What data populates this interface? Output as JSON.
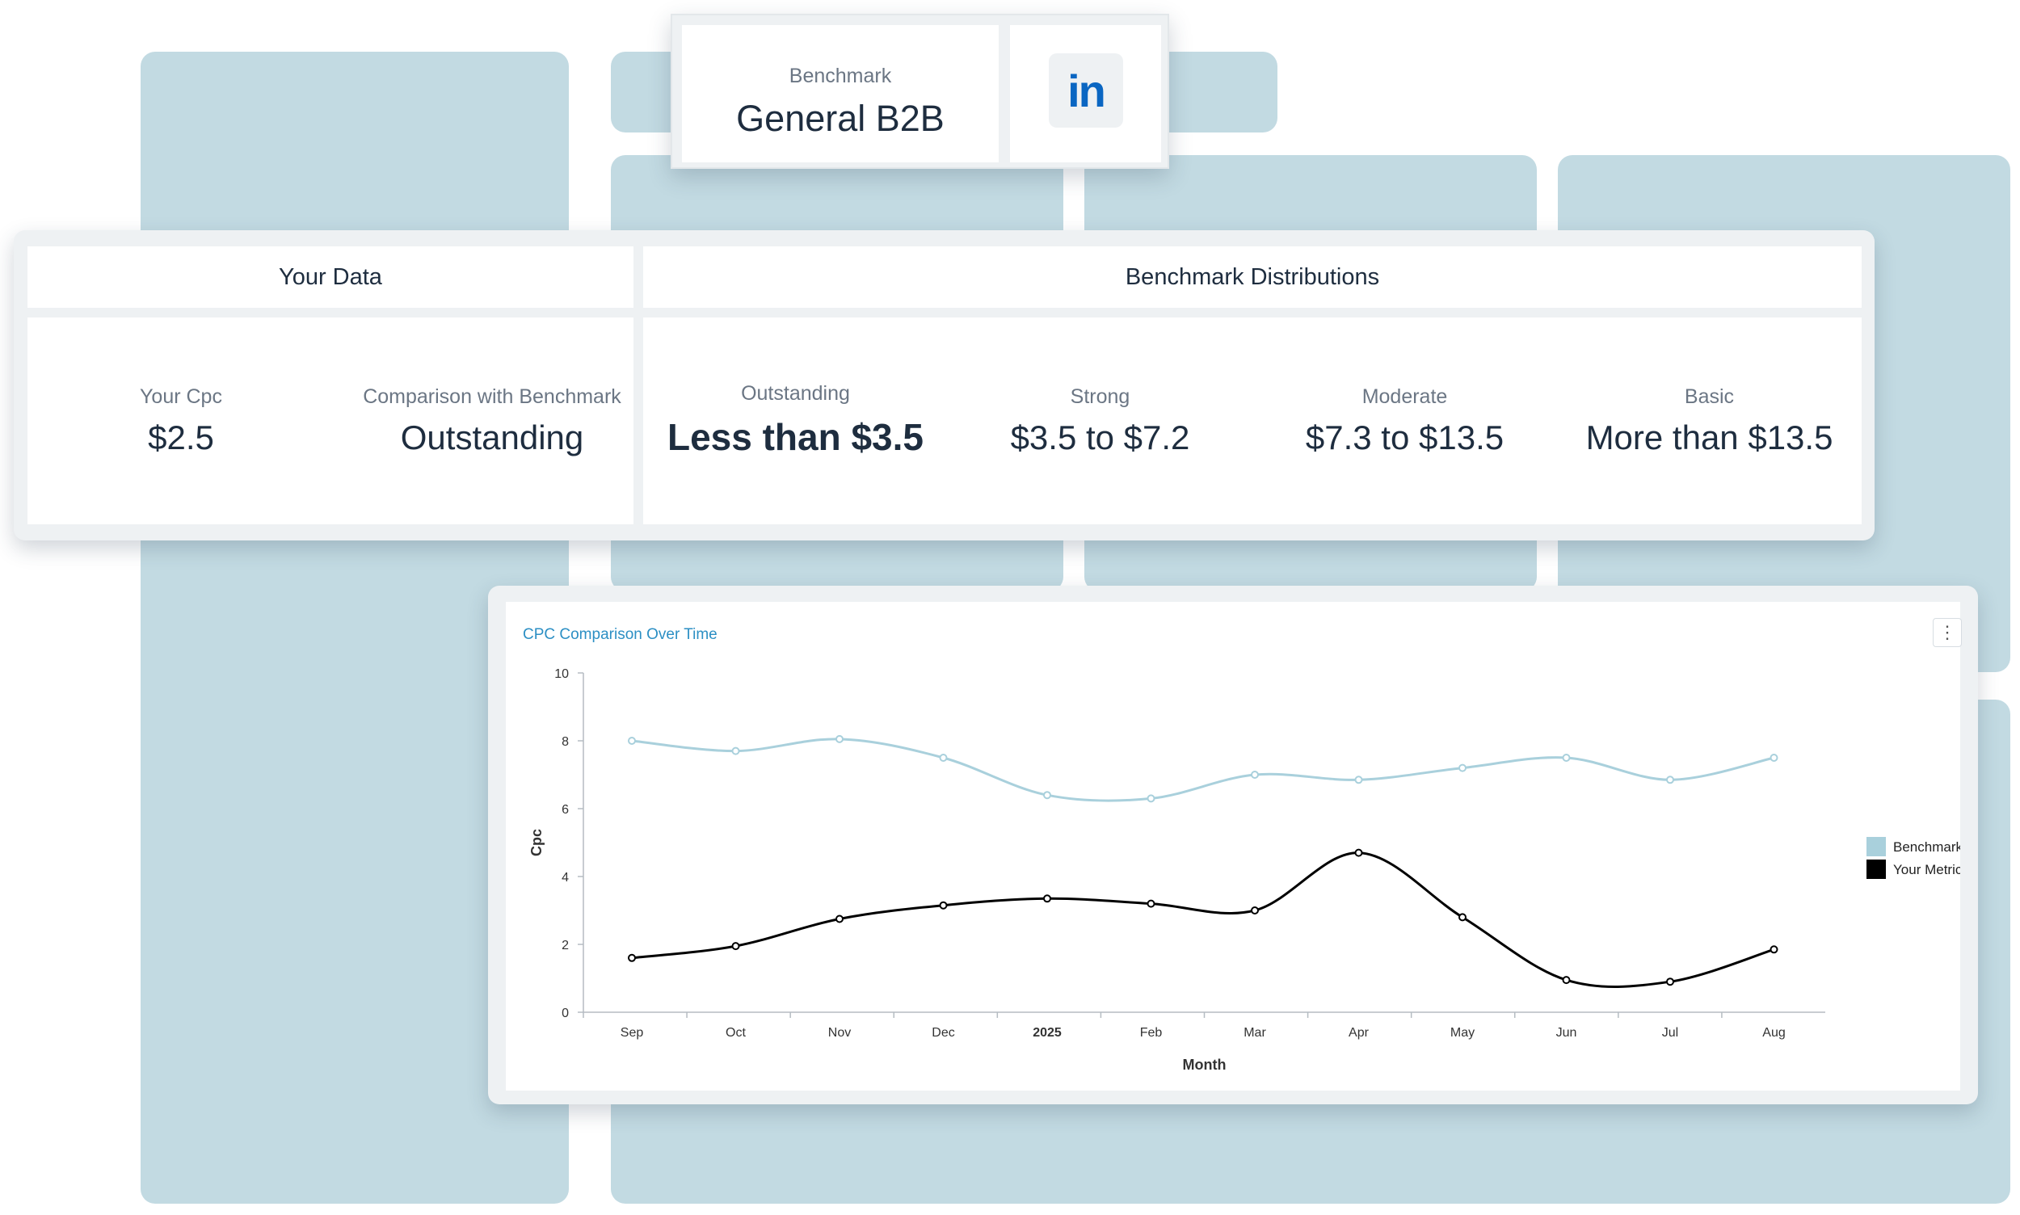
{
  "benchmark": {
    "label": "Benchmark",
    "value": "General B2B",
    "platform_icon": "linkedin-icon"
  },
  "your_data": {
    "header": "Your Data",
    "cpc_label": "Your Cpc",
    "cpc_value": "$2.5",
    "comparison_label": "Comparison with Benchmark",
    "comparison_value": "Outstanding"
  },
  "distributions": {
    "header": "Benchmark Distributions",
    "tiers": [
      {
        "label": "Outstanding",
        "value": "Less than $3.5"
      },
      {
        "label": "Strong",
        "value": "$3.5 to $7.2"
      },
      {
        "label": "Moderate",
        "value": "$7.3 to $13.5"
      },
      {
        "label": "Basic",
        "value": "More than $13.5"
      }
    ]
  },
  "chart": {
    "title": "CPC Comparison Over Time",
    "menu_icon": "kebab-menu-icon"
  },
  "colors": {
    "benchmark": "#a9d0dc",
    "your_metric": "#000000",
    "background_blocks": "#c2dae2",
    "title_accent": "#2c8fc4"
  },
  "chart_data": {
    "type": "line",
    "title": "CPC Comparison Over Time",
    "xlabel": "Month",
    "ylabel": "Cpc",
    "categories": [
      "Sep",
      "Oct",
      "Nov",
      "Dec",
      "2025",
      "Feb",
      "Mar",
      "Apr",
      "May",
      "Jun",
      "Jul",
      "Aug"
    ],
    "ylim": [
      0,
      10
    ],
    "yticks": [
      0,
      2,
      4,
      6,
      8,
      10
    ],
    "grid": false,
    "legend": "right",
    "series": [
      {
        "name": "Benchmark",
        "values": [
          8.0,
          7.7,
          8.05,
          7.5,
          6.4,
          6.3,
          7.0,
          6.85,
          7.2,
          7.5,
          6.85,
          7.5
        ]
      },
      {
        "name": "Your Metric",
        "values": [
          1.6,
          1.95,
          2.75,
          3.15,
          3.35,
          3.2,
          3.0,
          4.7,
          2.8,
          0.95,
          0.9,
          1.85
        ]
      }
    ]
  }
}
